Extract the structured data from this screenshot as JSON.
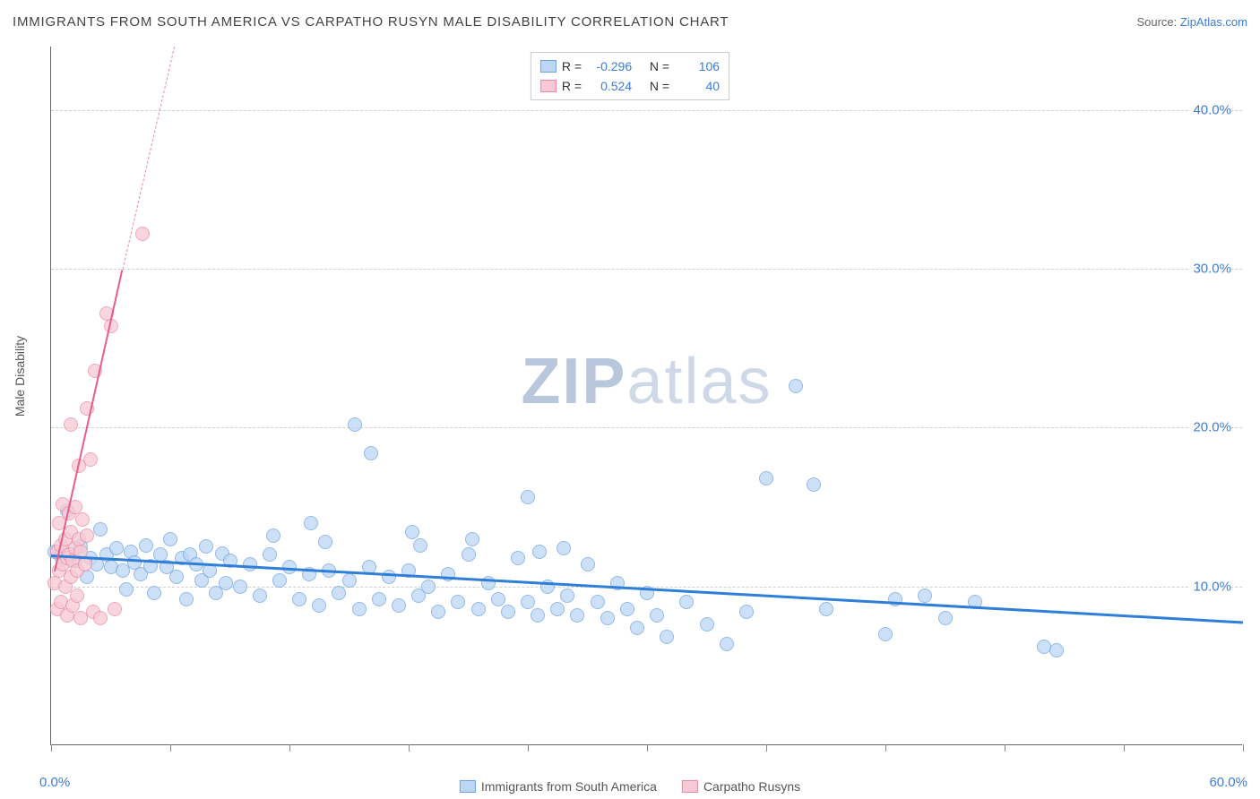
{
  "title": "IMMIGRANTS FROM SOUTH AMERICA VS CARPATHO RUSYN MALE DISABILITY CORRELATION CHART",
  "source_prefix": "Source: ",
  "source_link": "ZipAtlas.com",
  "watermark_a": "ZIP",
  "watermark_b": "atlas",
  "chart": {
    "type": "scatter",
    "xlim": [
      0,
      60
    ],
    "ylim": [
      0,
      44
    ],
    "x_label_min": "0.0%",
    "x_label_max": "60.0%",
    "y_ticks": [
      10,
      20,
      30,
      40
    ],
    "y_tick_labels": [
      "10.0%",
      "20.0%",
      "30.0%",
      "40.0%"
    ],
    "x_ticks": [
      0,
      6,
      12,
      18,
      24,
      30,
      36,
      42,
      48,
      54,
      60
    ],
    "y_axis_title": "Male Disability",
    "grid_color": "#d0d0d0",
    "background": "#ffffff",
    "marker_radius": 8,
    "series": [
      {
        "name": "Immigrants from South America",
        "fill": "#bcd6f5",
        "stroke": "#6fa3e0",
        "trend": {
          "x1": 0,
          "y1": 12.0,
          "x2": 60,
          "y2": 7.8,
          "color": "#2f7ed8",
          "width": 3
        },
        "points": [
          [
            0.2,
            12.2
          ],
          [
            0.5,
            11.9
          ],
          [
            0.8,
            14.8
          ],
          [
            1.0,
            12.0
          ],
          [
            1.2,
            11.6
          ],
          [
            1.5,
            12.5
          ],
          [
            1.8,
            10.6
          ],
          [
            2.0,
            11.8
          ],
          [
            2.3,
            11.4
          ],
          [
            2.5,
            13.6
          ],
          [
            2.8,
            12.0
          ],
          [
            3.0,
            11.2
          ],
          [
            3.3,
            12.4
          ],
          [
            3.6,
            11.0
          ],
          [
            3.8,
            9.8
          ],
          [
            4.0,
            12.2
          ],
          [
            4.2,
            11.5
          ],
          [
            4.5,
            10.8
          ],
          [
            4.8,
            12.6
          ],
          [
            5.0,
            11.3
          ],
          [
            5.2,
            9.6
          ],
          [
            5.5,
            12.0
          ],
          [
            5.8,
            11.2
          ],
          [
            6.0,
            13.0
          ],
          [
            6.3,
            10.6
          ],
          [
            6.6,
            11.8
          ],
          [
            6.8,
            9.2
          ],
          [
            7.0,
            12.0
          ],
          [
            7.3,
            11.4
          ],
          [
            7.6,
            10.4
          ],
          [
            7.8,
            12.5
          ],
          [
            8.0,
            11.0
          ],
          [
            8.3,
            9.6
          ],
          [
            8.6,
            12.1
          ],
          [
            8.8,
            10.2
          ],
          [
            9.0,
            11.6
          ],
          [
            9.5,
            10.0
          ],
          [
            10.0,
            11.4
          ],
          [
            10.5,
            9.4
          ],
          [
            11.0,
            12.0
          ],
          [
            11.5,
            10.4
          ],
          [
            12.0,
            11.2
          ],
          [
            12.5,
            9.2
          ],
          [
            13.0,
            10.8
          ],
          [
            13.1,
            14.0
          ],
          [
            13.5,
            8.8
          ],
          [
            14.0,
            11.0
          ],
          [
            14.5,
            9.6
          ],
          [
            15.0,
            10.4
          ],
          [
            15.3,
            20.2
          ],
          [
            15.5,
            8.6
          ],
          [
            16.0,
            11.2
          ],
          [
            16.1,
            18.4
          ],
          [
            16.5,
            9.2
          ],
          [
            17.0,
            10.6
          ],
          [
            17.5,
            8.8
          ],
          [
            18.0,
            11.0
          ],
          [
            18.5,
            9.4
          ],
          [
            18.6,
            12.6
          ],
          [
            19.0,
            10.0
          ],
          [
            19.5,
            8.4
          ],
          [
            20.0,
            10.8
          ],
          [
            20.5,
            9.0
          ],
          [
            21.0,
            12.0
          ],
          [
            21.5,
            8.6
          ],
          [
            22.0,
            10.2
          ],
          [
            22.5,
            9.2
          ],
          [
            23.0,
            8.4
          ],
          [
            23.5,
            11.8
          ],
          [
            24.0,
            15.6
          ],
          [
            24.0,
            9.0
          ],
          [
            24.5,
            8.2
          ],
          [
            24.6,
            12.2
          ],
          [
            25.0,
            10.0
          ],
          [
            25.5,
            8.6
          ],
          [
            25.8,
            12.4
          ],
          [
            26.0,
            9.4
          ],
          [
            26.5,
            8.2
          ],
          [
            27.0,
            11.4
          ],
          [
            27.5,
            9.0
          ],
          [
            28.0,
            8.0
          ],
          [
            28.5,
            10.2
          ],
          [
            29.0,
            8.6
          ],
          [
            29.5,
            7.4
          ],
          [
            30.0,
            9.6
          ],
          [
            30.5,
            8.2
          ],
          [
            31.0,
            6.8
          ],
          [
            32.0,
            9.0
          ],
          [
            33.0,
            7.6
          ],
          [
            34.0,
            6.4
          ],
          [
            35.0,
            8.4
          ],
          [
            36.0,
            16.8
          ],
          [
            37.5,
            22.6
          ],
          [
            38.4,
            16.4
          ],
          [
            39.0,
            8.6
          ],
          [
            42.0,
            7.0
          ],
          [
            44.0,
            9.4
          ],
          [
            50.0,
            6.2
          ],
          [
            50.6,
            6.0
          ],
          [
            42.5,
            9.2
          ],
          [
            45.0,
            8.0
          ],
          [
            46.5,
            9.0
          ],
          [
            11.2,
            13.2
          ],
          [
            13.8,
            12.8
          ],
          [
            18.2,
            13.4
          ],
          [
            21.2,
            13.0
          ]
        ]
      },
      {
        "name": "Carpatho Rusyns",
        "fill": "#f8c9d4",
        "stroke": "#e98aa5",
        "trend_solid": {
          "x1": 0.2,
          "y1": 11.0,
          "x2": 3.6,
          "y2": 30.0,
          "color": "#e75d8a",
          "width": 2.2
        },
        "trend_dash": {
          "x1": 3.6,
          "y1": 30.0,
          "x2": 6.2,
          "y2": 44.0,
          "color": "#e98aa5",
          "width": 1.2
        },
        "points": [
          [
            0.2,
            10.2
          ],
          [
            0.3,
            8.6
          ],
          [
            0.3,
            12.2
          ],
          [
            0.4,
            11.0
          ],
          [
            0.4,
            14.0
          ],
          [
            0.5,
            9.0
          ],
          [
            0.5,
            12.6
          ],
          [
            0.6,
            11.4
          ],
          [
            0.6,
            15.2
          ],
          [
            0.7,
            10.0
          ],
          [
            0.7,
            13.0
          ],
          [
            0.8,
            11.8
          ],
          [
            0.8,
            8.2
          ],
          [
            0.9,
            14.6
          ],
          [
            0.9,
            12.0
          ],
          [
            1.0,
            10.6
          ],
          [
            1.0,
            13.4
          ],
          [
            1.0,
            20.2
          ],
          [
            1.1,
            11.6
          ],
          [
            1.1,
            8.8
          ],
          [
            1.2,
            12.4
          ],
          [
            1.2,
            15.0
          ],
          [
            1.3,
            11.0
          ],
          [
            1.3,
            9.4
          ],
          [
            1.4,
            13.0
          ],
          [
            1.4,
            17.6
          ],
          [
            1.5,
            12.2
          ],
          [
            1.5,
            8.0
          ],
          [
            1.6,
            14.2
          ],
          [
            1.7,
            11.4
          ],
          [
            1.8,
            21.2
          ],
          [
            1.8,
            13.2
          ],
          [
            2.0,
            18.0
          ],
          [
            2.1,
            8.4
          ],
          [
            2.2,
            23.6
          ],
          [
            2.5,
            8.0
          ],
          [
            2.8,
            27.2
          ],
          [
            3.2,
            8.6
          ],
          [
            3.0,
            26.4
          ],
          [
            4.6,
            32.2
          ]
        ]
      }
    ],
    "legend_stats": [
      {
        "swatch_fill": "#bcd6f5",
        "swatch_stroke": "#6fa3e0",
        "r": "-0.296",
        "n": "106"
      },
      {
        "swatch_fill": "#f8c9d4",
        "swatch_stroke": "#e98aa5",
        "r": "0.524",
        "n": "40"
      }
    ],
    "legend_r_label": "R =",
    "legend_n_label": "N ="
  }
}
